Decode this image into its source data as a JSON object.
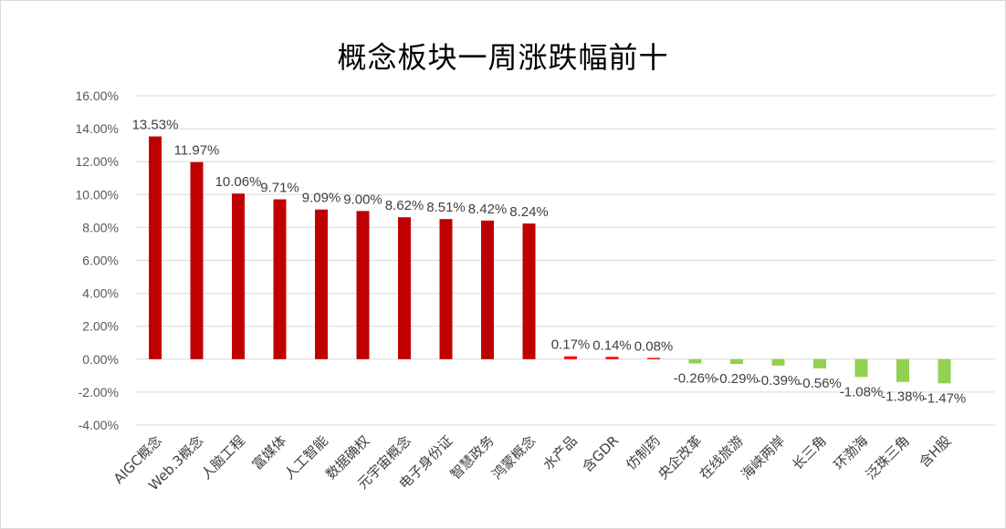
{
  "chart_data": {
    "type": "bar",
    "title": "概念板块一周涨跌幅前十",
    "categories": [
      "AIGC概念",
      "Web.3概念",
      "人脑工程",
      "富媒体",
      "人工智能",
      "数据确权",
      "元宇宙概念",
      "电子身份证",
      "智慧政务",
      "鸿蒙概念",
      "水产品",
      "含GDR",
      "仿制药",
      "央企改革",
      "在线旅游",
      "海峡两岸",
      "长三角",
      "环渤海",
      "泛珠三角",
      "含H股"
    ],
    "values": [
      13.53,
      11.97,
      10.06,
      9.71,
      9.09,
      9.0,
      8.62,
      8.51,
      8.42,
      8.24,
      0.17,
      0.14,
      0.08,
      -0.26,
      -0.29,
      -0.39,
      -0.56,
      -1.08,
      -1.38,
      -1.47
    ],
    "data_labels": [
      "13.53%",
      "11.97%",
      "10.06%",
      "9.71%",
      "9.09%",
      "9.00%",
      "8.62%",
      "8.51%",
      "8.42%",
      "8.24%",
      "0.17%",
      "0.14%",
      "0.08%",
      "-0.26%",
      "-0.29%",
      "-0.39%",
      "-0.56%",
      "-1.08%",
      "-1.38%",
      "-1.47%"
    ],
    "y_ticks": [
      "-4.00%",
      "-2.00%",
      "0.00%",
      "2.00%",
      "4.00%",
      "6.00%",
      "8.00%",
      "10.00%",
      "12.00%",
      "14.00%",
      "16.00%"
    ],
    "ylim": [
      -4,
      16
    ],
    "grid": true,
    "legend": "none",
    "colors": {
      "top_group": "#c00000",
      "mid_group": "#ff0000",
      "negative": "#92d050",
      "grid": "#d9d9d9"
    }
  }
}
